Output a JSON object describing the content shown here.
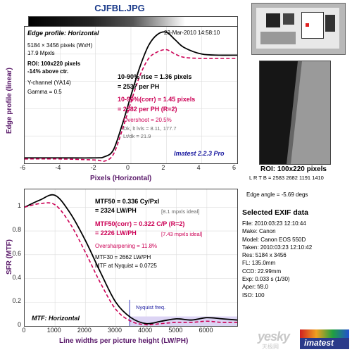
{
  "window_title": "CJFBL.JPG",
  "edge": {
    "heading": "Edge profile: Horizontal",
    "datetime": "23-Mar-2010 14:58:10",
    "dims": "5184 × 3456 pixels (WxH)",
    "mpxls": "17.9 Mpxls",
    "roi": "ROI: 100x220 pixels",
    "above": "-14% above ctr.",
    "channel": "Y-channel  (YA14)",
    "gamma": "Gamma = 0.5",
    "rise1": "10-90% rise = 1.36 pixels",
    "rise2": "= 2537 per PH",
    "corr1": "10-90%(corr) = 1.45 pixels",
    "corr2": "= 2382 per PH  (R=2)",
    "overshoot": "Overshoot = 20.5%",
    "dk": "Dk, lt lvls = 8.11, 177.7",
    "ltdk": "Lt/dk = 21.9",
    "brand": "Imatest 2.2.3 Pro",
    "ylabel": "Edge profile (linear)",
    "xlabel": "Pixels (Horizontal)",
    "xticks": [
      "-6",
      "-4",
      "-2",
      "0",
      "2",
      "4",
      "6"
    ]
  },
  "mtf": {
    "mtf50a": "MTF50 = 0.336 Cy/Pxl",
    "mtf50b": "= 2324 LW/PH",
    "ideal1": "[8.1 mpxls ideal]",
    "mtf50c": "MTF50(corr) = 0.322 C/P  (R=2)",
    "mtf50d": "= 2226 LW/PH",
    "ideal2": "[7.43 mpxls ideal]",
    "oversharp": "Oversharpening = 11.8%",
    "mtf30": "MTF30 = 2662 LW/PH",
    "nyq": "MTF at Nyquist = 0.0725",
    "nyq_label": "Nyquist freq.",
    "heading": "MTF: Horizontal",
    "ylabel": "SFR (MTF)",
    "xlabel": "Line widths per picture height (LW/PH)",
    "yticks": [
      "1",
      "0.8",
      "0.6",
      "0.4",
      "0.2",
      "0"
    ],
    "xticks": [
      "0",
      "1000",
      "2000",
      "3000",
      "4000",
      "5000",
      "6000"
    ]
  },
  "roi_info": {
    "title": "ROI: 100x220 pixels",
    "lrtb": "L R T B = 2583 2682 1191 1410",
    "angle": "Edge angle = -5.69 degs"
  },
  "exif": {
    "title": "Selected EXIF data",
    "rows": [
      "File:  2010:03:23 12:10:44",
      "Make:  Canon",
      "Model:  Canon EOS 550D",
      "Taken:  2010:03:23 12:10:42",
      "Res:  5184 x 3456",
      "FL:  135.0mm",
      "CCD:  22.99mm",
      "Exp:  0.033 s  (1/30)",
      "Aper:  f/8.0",
      "ISO:  100"
    ]
  },
  "watermark": "yesky",
  "watermark_cn": "天极网",
  "logo": "imatest",
  "chart_data": [
    {
      "type": "line",
      "title": "Edge profile: Horizontal",
      "xlabel": "Pixels (Horizontal)",
      "ylabel": "Edge profile (linear)",
      "xlim": [
        -6,
        6
      ],
      "ylim": [
        0,
        1.25
      ],
      "series": [
        {
          "values_x": [
            -6,
            -4,
            -2,
            -1.5,
            -1,
            -0.5,
            0,
            0.5,
            1,
            1.5,
            2,
            2.5,
            3,
            4,
            5,
            6
          ],
          "values": [
            0.05,
            0.05,
            0.05,
            0.06,
            0.12,
            0.35,
            0.62,
            0.88,
            1.08,
            1.18,
            1.2,
            1.13,
            1.06,
            1.0,
            0.99,
            0.99
          ]
        },
        {
          "values_x": [
            -6,
            -4,
            -2,
            -1.5,
            -1,
            -0.5,
            0,
            0.5,
            1,
            1.5,
            2,
            2.5,
            3,
            4,
            5,
            6
          ],
          "values": [
            0.04,
            0.04,
            0.03,
            0.02,
            0.08,
            0.3,
            0.56,
            0.8,
            0.96,
            1.02,
            1.04,
            1.0,
            0.97,
            0.96,
            0.96,
            0.96
          ]
        }
      ]
    },
    {
      "type": "line",
      "title": "MTF: Horizontal",
      "xlabel": "Line widths per picture height (LW/PH)",
      "ylabel": "SFR (MTF)",
      "xlim": [
        0,
        7000
      ],
      "ylim": [
        0,
        1.15
      ],
      "series": [
        {
          "x": [
            0,
            500,
            1000,
            1500,
            2000,
            2500,
            3000,
            3500,
            4000,
            4500,
            5000,
            5500,
            6000,
            6500,
            7000
          ],
          "values": [
            1.0,
            1.06,
            1.1,
            0.95,
            0.72,
            0.45,
            0.2,
            0.07,
            0.02,
            0.04,
            0.06,
            0.05,
            0.07,
            0.06,
            0.05
          ]
        },
        {
          "x": [
            0,
            500,
            1000,
            1500,
            2000,
            2500,
            3000,
            3500,
            4000,
            4500,
            5000,
            5500,
            6000,
            6500,
            7000
          ],
          "values": [
            1.0,
            1.03,
            1.02,
            0.86,
            0.62,
            0.36,
            0.14,
            0.04,
            0.01,
            0.02,
            0.03,
            0.03,
            0.04,
            0.03,
            0.03
          ]
        }
      ]
    }
  ]
}
